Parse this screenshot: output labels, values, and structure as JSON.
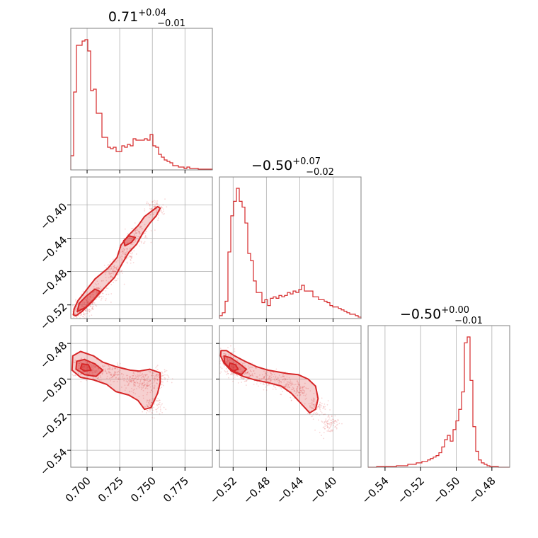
{
  "chart_data": {
    "type": "corner",
    "series_color": "#d62728",
    "grid": true,
    "params": [
      {
        "title": {
          "value": "0.71",
          "plus": "+0.04",
          "minus": "−0.01"
        },
        "range": [
          0.6875,
          0.796
        ],
        "ticks": [
          0.7,
          0.725,
          0.75,
          0.775
        ],
        "tick_labels": [
          "0.700",
          "0.725",
          "0.750",
          "0.775"
        ],
        "hist": [
          0.1,
          0.55,
          0.88,
          0.88,
          0.91,
          0.92,
          0.84,
          0.56,
          0.57,
          0.4,
          0.4,
          0.23,
          0.23,
          0.16,
          0.15,
          0.16,
          0.13,
          0.13,
          0.17,
          0.16,
          0.18,
          0.17,
          0.22,
          0.21,
          0.21,
          0.21,
          0.22,
          0.21,
          0.25,
          0.17,
          0.16,
          0.11,
          0.09,
          0.07,
          0.06,
          0.05,
          0.03,
          0.03,
          0.02,
          0.02,
          0.01,
          0.02,
          0.01,
          0.01,
          0.01,
          0.005,
          0.005,
          0.005,
          0.005,
          0.005
        ]
      },
      {
        "title": {
          "value": "−0.50",
          "plus": "+0.07",
          "minus": "−0.02"
        },
        "range": [
          -0.5364,
          -0.3664
        ],
        "ticks": [
          -0.52,
          -0.48,
          -0.44,
          -0.4
        ],
        "tick_labels": [
          "−0.52",
          "−0.48",
          "−0.44",
          "−0.40"
        ],
        "hist": [
          0.02,
          0.04,
          0.12,
          0.46,
          0.71,
          0.81,
          0.9,
          0.81,
          0.77,
          0.66,
          0.45,
          0.4,
          0.26,
          0.18,
          0.18,
          0.11,
          0.13,
          0.09,
          0.14,
          0.15,
          0.14,
          0.16,
          0.15,
          0.16,
          0.18,
          0.17,
          0.19,
          0.18,
          0.2,
          0.23,
          0.19,
          0.19,
          0.19,
          0.15,
          0.15,
          0.13,
          0.13,
          0.12,
          0.11,
          0.09,
          0.08,
          0.08,
          0.07,
          0.06,
          0.05,
          0.04,
          0.03,
          0.03,
          0.02,
          0.01
        ]
      },
      {
        "title": {
          "value": "−0.50",
          "plus": "+0.00",
          "minus": "−0.01"
        },
        "range": [
          -0.5495,
          -0.47
        ],
        "ticks": [
          -0.54,
          -0.52,
          -0.5,
          -0.48
        ],
        "tick_labels": [
          "−0.54",
          "−0.52",
          "−0.50",
          "−0.48"
        ],
        "hist": [
          0.0,
          0.0,
          0.0,
          0.005,
          0.005,
          0.005,
          0.005,
          0.005,
          0.005,
          0.005,
          0.01,
          0.01,
          0.01,
          0.01,
          0.02,
          0.02,
          0.02,
          0.03,
          0.03,
          0.04,
          0.04,
          0.05,
          0.06,
          0.07,
          0.08,
          0.1,
          0.14,
          0.19,
          0.22,
          0.18,
          0.26,
          0.32,
          0.4,
          0.52,
          0.86,
          0.9,
          0.6,
          0.28,
          0.11,
          0.05,
          0.03,
          0.02,
          0.01,
          0.005,
          0.005,
          0.005,
          0.0,
          0.0,
          0.0,
          0.0
        ]
      }
    ],
    "pairs": [
      {
        "x_param": 0,
        "y_param": 1,
        "centroids": [
          [
            0.6937,
            -0.53
          ],
          [
            0.7,
            -0.52
          ],
          [
            0.708,
            -0.505
          ],
          [
            0.72,
            -0.48
          ],
          [
            0.73,
            -0.46
          ],
          [
            0.74,
            -0.435
          ],
          [
            0.752,
            -0.405
          ]
        ],
        "contours": [
          {
            "level": "outer",
            "points": [
              [
                0.6915,
                -0.533
              ],
              [
                0.696,
                -0.528
              ],
              [
                0.704,
                -0.516
              ],
              [
                0.713,
                -0.5
              ],
              [
                0.721,
                -0.487
              ],
              [
                0.727,
                -0.47
              ],
              [
                0.732,
                -0.457
              ],
              [
                0.738,
                -0.447
              ],
              [
                0.743,
                -0.433
              ],
              [
                0.748,
                -0.422
              ],
              [
                0.753,
                -0.413
              ],
              [
                0.756,
                -0.404
              ],
              [
                0.754,
                -0.402
              ],
              [
                0.749,
                -0.408
              ],
              [
                0.744,
                -0.414
              ],
              [
                0.739,
                -0.425
              ],
              [
                0.732,
                -0.436
              ],
              [
                0.726,
                -0.448
              ],
              [
                0.723,
                -0.463
              ],
              [
                0.716,
                -0.476
              ],
              [
                0.706,
                -0.489
              ],
              [
                0.698,
                -0.505
              ],
              [
                0.693,
                -0.515
              ],
              [
                0.69,
                -0.525
              ],
              [
                0.6895,
                -0.532
              ]
            ]
          },
          {
            "level": "inner",
            "points": [
              [
                0.6925,
                -0.528
              ],
              [
                0.699,
                -0.523
              ],
              [
                0.706,
                -0.512
              ],
              [
                0.71,
                -0.504
              ],
              [
                0.706,
                -0.501
              ],
              [
                0.699,
                -0.51
              ],
              [
                0.694,
                -0.518
              ]
            ]
          },
          {
            "level": "inner",
            "points": [
              [
                0.729,
                -0.449
              ],
              [
                0.734,
                -0.445
              ],
              [
                0.737,
                -0.439
              ],
              [
                0.732,
                -0.437
              ],
              [
                0.728,
                -0.443
              ]
            ]
          }
        ]
      },
      {
        "x_param": 0,
        "y_param": 2,
        "centroids": [
          [
            0.696,
            -0.4935
          ],
          [
            0.705,
            -0.4955
          ],
          [
            0.72,
            -0.497
          ],
          [
            0.735,
            -0.501
          ],
          [
            0.745,
            -0.502
          ],
          [
            0.755,
            -0.499
          ],
          [
            0.75,
            -0.515
          ]
        ],
        "contours": [
          {
            "level": "outer",
            "points": [
              [
                0.689,
                -0.487
              ],
              [
                0.695,
                -0.4845
              ],
              [
                0.705,
                -0.487
              ],
              [
                0.712,
                -0.4905
              ],
              [
                0.722,
                -0.493
              ],
              [
                0.733,
                -0.495
              ],
              [
                0.74,
                -0.4955
              ],
              [
                0.748,
                -0.4945
              ],
              [
                0.756,
                -0.4965
              ],
              [
                0.756,
                -0.502
              ],
              [
                0.754,
                -0.508
              ],
              [
                0.749,
                -0.516
              ],
              [
                0.744,
                -0.517
              ],
              [
                0.739,
                -0.512
              ],
              [
                0.732,
                -0.509
              ],
              [
                0.722,
                -0.507
              ],
              [
                0.715,
                -0.503
              ],
              [
                0.705,
                -0.5005
              ],
              [
                0.695,
                -0.499
              ],
              [
                0.6885,
                -0.495
              ]
            ]
          },
          {
            "level": "inner",
            "points": [
              [
                0.692,
                -0.49
              ],
              [
                0.698,
                -0.489
              ],
              [
                0.706,
                -0.4915
              ],
              [
                0.712,
                -0.495
              ],
              [
                0.707,
                -0.4985
              ],
              [
                0.698,
                -0.4975
              ],
              [
                0.6915,
                -0.4945
              ]
            ]
          },
          {
            "level": "inner",
            "points": [
              [
                0.696,
                -0.4915
              ],
              [
                0.701,
                -0.492
              ],
              [
                0.703,
                -0.495
              ],
              [
                0.698,
                -0.4955
              ],
              [
                0.695,
                -0.494
              ]
            ]
          }
        ]
      },
      {
        "x_param": 1,
        "y_param": 2,
        "centroids": [
          [
            -0.528,
            -0.4895
          ],
          [
            -0.52,
            -0.4935
          ],
          [
            -0.505,
            -0.497
          ],
          [
            -0.48,
            -0.5
          ],
          [
            -0.46,
            -0.502
          ],
          [
            -0.44,
            -0.506
          ],
          [
            -0.42,
            -0.515
          ],
          [
            -0.405,
            -0.525
          ]
        ],
        "contours": [
          {
            "level": "outer",
            "points": [
              [
                -0.5345,
                -0.484
              ],
              [
                -0.528,
                -0.484
              ],
              [
                -0.518,
                -0.487
              ],
              [
                -0.506,
                -0.49
              ],
              [
                -0.492,
                -0.493
              ],
              [
                -0.478,
                -0.495
              ],
              [
                -0.466,
                -0.496
              ],
              [
                -0.454,
                -0.497
              ],
              [
                -0.442,
                -0.4975
              ],
              [
                -0.43,
                -0.5
              ],
              [
                -0.421,
                -0.504
              ],
              [
                -0.418,
                -0.511
              ],
              [
                -0.421,
                -0.517
              ],
              [
                -0.428,
                -0.519
              ],
              [
                -0.438,
                -0.514
              ],
              [
                -0.45,
                -0.508
              ],
              [
                -0.462,
                -0.504
              ],
              [
                -0.478,
                -0.502
              ],
              [
                -0.494,
                -0.5005
              ],
              [
                -0.508,
                -0.4985
              ],
              [
                -0.522,
                -0.4955
              ],
              [
                -0.531,
                -0.491
              ],
              [
                -0.535,
                -0.487
              ]
            ]
          },
          {
            "level": "inner",
            "points": [
              [
                -0.531,
                -0.487
              ],
              [
                -0.523,
                -0.488
              ],
              [
                -0.512,
                -0.4915
              ],
              [
                -0.504,
                -0.4945
              ],
              [
                -0.51,
                -0.4975
              ],
              [
                -0.522,
                -0.495
              ],
              [
                -0.53,
                -0.491
              ]
            ]
          },
          {
            "level": "inner",
            "points": [
              [
                -0.524,
                -0.491
              ],
              [
                -0.517,
                -0.492
              ],
              [
                -0.514,
                -0.4945
              ],
              [
                -0.52,
                -0.4955
              ],
              [
                -0.525,
                -0.4935
              ]
            ]
          }
        ]
      }
    ]
  }
}
